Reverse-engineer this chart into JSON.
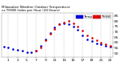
{
  "background_color": "#ffffff",
  "grid_color": "#aaaaaa",
  "blue_color": "#0000dd",
  "red_color": "#dd0000",
  "ylim": [
    46,
    88
  ],
  "xlim": [
    -0.5,
    23.5
  ],
  "ytick_positions": [
    50,
    55,
    60,
    65,
    70,
    75,
    80,
    85
  ],
  "ytick_labels": [
    "50",
    "55",
    "60",
    "65",
    "70",
    "75",
    "80",
    "85"
  ],
  "xtick_positions": [
    1,
    3,
    5,
    7,
    9,
    11,
    13,
    15,
    17,
    19,
    21,
    23
  ],
  "xtick_labels": [
    "1",
    "3",
    "5",
    "7",
    "9",
    "11",
    "13",
    "15",
    "17",
    "19",
    "21",
    "23"
  ],
  "vgrid_hours": [
    1,
    3,
    5,
    7,
    9,
    11,
    13,
    15,
    17,
    19,
    21,
    23
  ],
  "blue_hours": [
    0,
    1,
    2,
    3,
    4,
    5,
    6,
    7,
    8,
    9,
    10,
    11,
    12,
    13,
    14,
    15,
    16,
    17,
    18,
    19,
    20,
    21,
    22,
    23
  ],
  "blue_vals": [
    56,
    55,
    54,
    53,
    52,
    51,
    51,
    52,
    57,
    63,
    69,
    74,
    77,
    78,
    77,
    75,
    72,
    67,
    63,
    61,
    59,
    58,
    57,
    56
  ],
  "red_hours": [
    7,
    8,
    9,
    10,
    11,
    12,
    13,
    14,
    15,
    16,
    17,
    18,
    19,
    20,
    21,
    22,
    23
  ],
  "red_vals": [
    52,
    55,
    62,
    68,
    73,
    77,
    79,
    80,
    78,
    75,
    71,
    67,
    64,
    62,
    60,
    58,
    57
  ],
  "title": "Milwaukee Weather Outdoor Temperature vs THSW Index per Hour (24 Hours)",
  "title_fontsize": 3.0,
  "tick_fontsize": 3.2,
  "legend_fontsize": 3.0,
  "marker_size": 1.8
}
